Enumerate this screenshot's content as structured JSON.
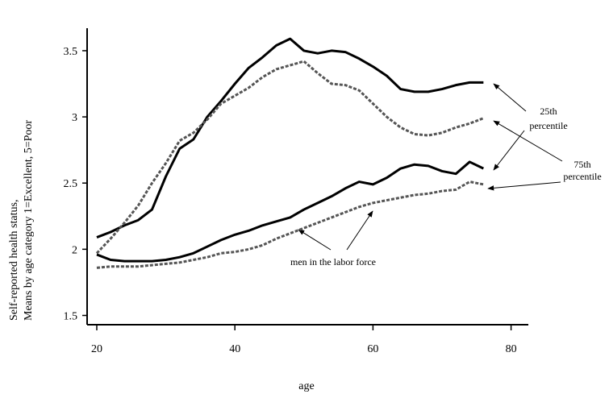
{
  "chart_data": {
    "type": "line",
    "ylabel": [
      "Self-reported health status,",
      "Means by age category 1=Excellent, 5=Poor"
    ],
    "xlabel": "age",
    "x": [
      20,
      22,
      24,
      26,
      28,
      30,
      32,
      34,
      36,
      38,
      40,
      42,
      44,
      46,
      48,
      50,
      52,
      54,
      56,
      58,
      60,
      62,
      64,
      66,
      68,
      70,
      72,
      74,
      76
    ],
    "series": [
      {
        "color": "#000000",
        "dash": false,
        "values": [
          2.09,
          2.13,
          2.18,
          2.22,
          2.3,
          2.55,
          2.76,
          2.83,
          3.0,
          3.12,
          3.25,
          3.37,
          3.45,
          3.54,
          3.59,
          3.5,
          3.48,
          3.5,
          3.49,
          3.44,
          3.38,
          3.31,
          3.21,
          3.19,
          3.19,
          3.21,
          3.24,
          3.26,
          3.26
        ]
      },
      {
        "color": "#555555",
        "dash": true,
        "values": [
          1.97,
          2.08,
          2.2,
          2.33,
          2.5,
          2.65,
          2.82,
          2.88,
          2.98,
          3.1,
          3.16,
          3.22,
          3.3,
          3.36,
          3.39,
          3.42,
          3.33,
          3.25,
          3.24,
          3.2,
          3.1,
          3.0,
          2.92,
          2.87,
          2.86,
          2.88,
          2.92,
          2.95,
          2.99
        ]
      },
      {
        "color": "#000000",
        "dash": false,
        "values": [
          1.96,
          1.92,
          1.91,
          1.91,
          1.91,
          1.92,
          1.94,
          1.97,
          2.02,
          2.07,
          2.11,
          2.14,
          2.18,
          2.21,
          2.24,
          2.3,
          2.35,
          2.4,
          2.46,
          2.51,
          2.49,
          2.54,
          2.61,
          2.64,
          2.63,
          2.59,
          2.57,
          2.66,
          2.61
        ]
      },
      {
        "color": "#555555",
        "dash": true,
        "values": [
          1.86,
          1.87,
          1.87,
          1.87,
          1.88,
          1.89,
          1.9,
          1.92,
          1.94,
          1.97,
          1.98,
          2.0,
          2.03,
          2.08,
          2.12,
          2.16,
          2.2,
          2.24,
          2.28,
          2.32,
          2.35,
          2.37,
          2.39,
          2.41,
          2.42,
          2.44,
          2.45,
          2.51,
          2.49
        ]
      }
    ],
    "xlim": [
      18.6,
      82.5
    ],
    "xticks": [
      20,
      40,
      60,
      80
    ],
    "ylim": [
      1.43,
      3.67
    ],
    "yticks": [
      1.5,
      2,
      2.5,
      3,
      3.5
    ],
    "annotations": [
      {
        "lines": [
          "25th",
          "percentile"
        ]
      },
      {
        "lines": [
          "75th",
          "percentile"
        ]
      },
      {
        "lines": [
          "men in the labor force"
        ]
      }
    ]
  }
}
